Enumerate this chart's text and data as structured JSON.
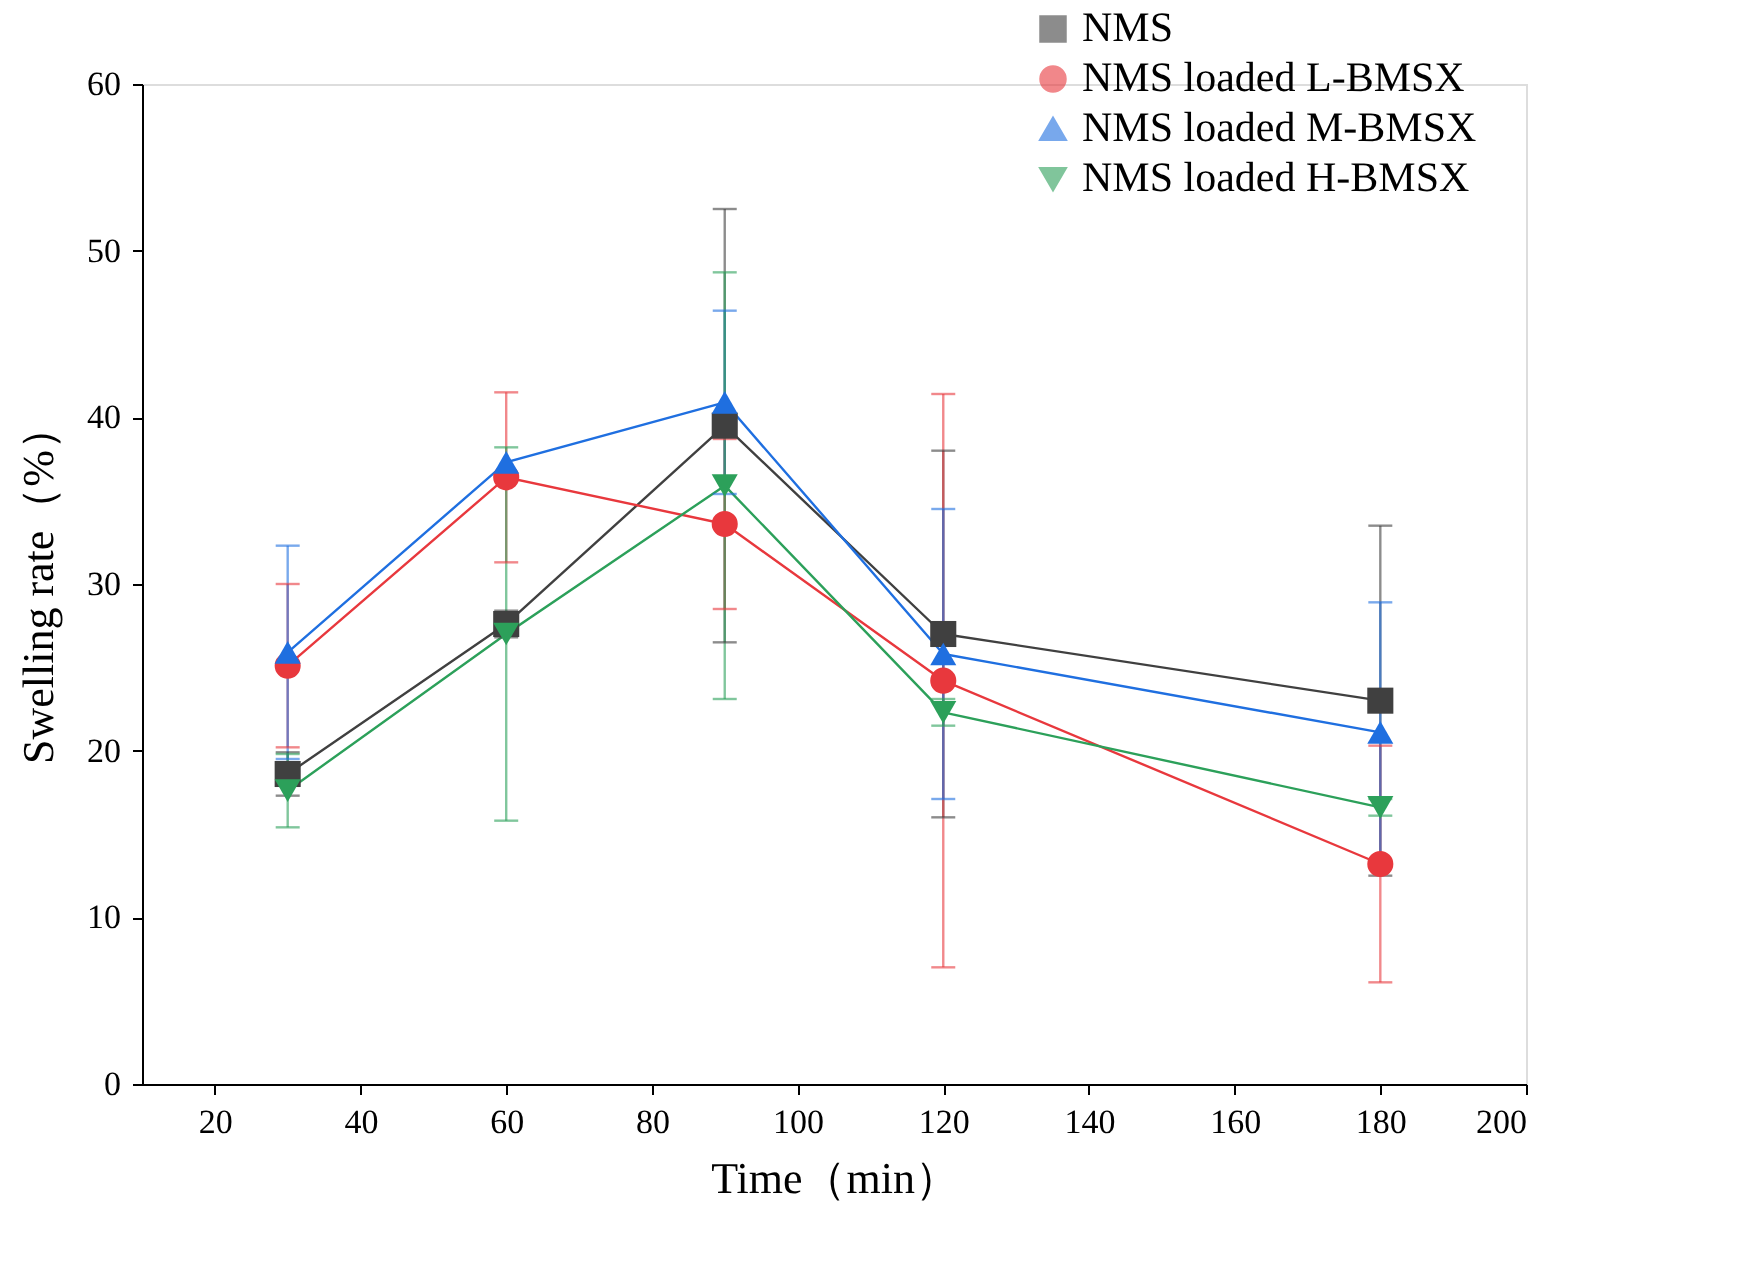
{
  "chart_data": {
    "type": "line",
    "xlabel": "Time（min）",
    "ylabel": "Swelling rate（%）",
    "x": [
      30,
      60,
      90,
      120,
      180
    ],
    "series": [
      {
        "name": "NMS",
        "color": "#404040",
        "marker": "square",
        "values": [
          18.6,
          27.6,
          39.5,
          27.0,
          23.0
        ],
        "errors": [
          1.3,
          0.8,
          13.0,
          11.0,
          10.5
        ]
      },
      {
        "name": "NMS loaded L-BMSX",
        "color": "#e8383d",
        "marker": "circle",
        "values": [
          25.1,
          36.4,
          33.6,
          24.2,
          13.2
        ],
        "errors": [
          4.9,
          5.1,
          5.1,
          17.2,
          7.1
        ]
      },
      {
        "name": "NMS loaded M-BMSX",
        "color": "#1f6fe0",
        "marker": "triangle",
        "values": [
          25.9,
          37.3,
          40.9,
          25.8,
          21.1
        ],
        "errors": [
          6.4,
          null,
          5.5,
          8.7,
          7.8
        ]
      },
      {
        "name": "NMS loaded H-BMSX",
        "color": "#2ca05a",
        "marker": "triangle-down",
        "values": [
          17.6,
          27.0,
          35.9,
          22.3,
          16.6
        ],
        "errors": [
          2.2,
          11.2,
          12.8,
          0.8,
          0.5
        ]
      }
    ],
    "xlim": [
      10,
      200
    ],
    "xticks": [
      20,
      40,
      60,
      80,
      100,
      120,
      140,
      160,
      180,
      200
    ],
    "ylim": [
      0,
      60
    ],
    "yticks": [
      0,
      10,
      20,
      30,
      40,
      50,
      60
    ],
    "grid": false,
    "legend": "top right",
    "line_style": "solid"
  }
}
